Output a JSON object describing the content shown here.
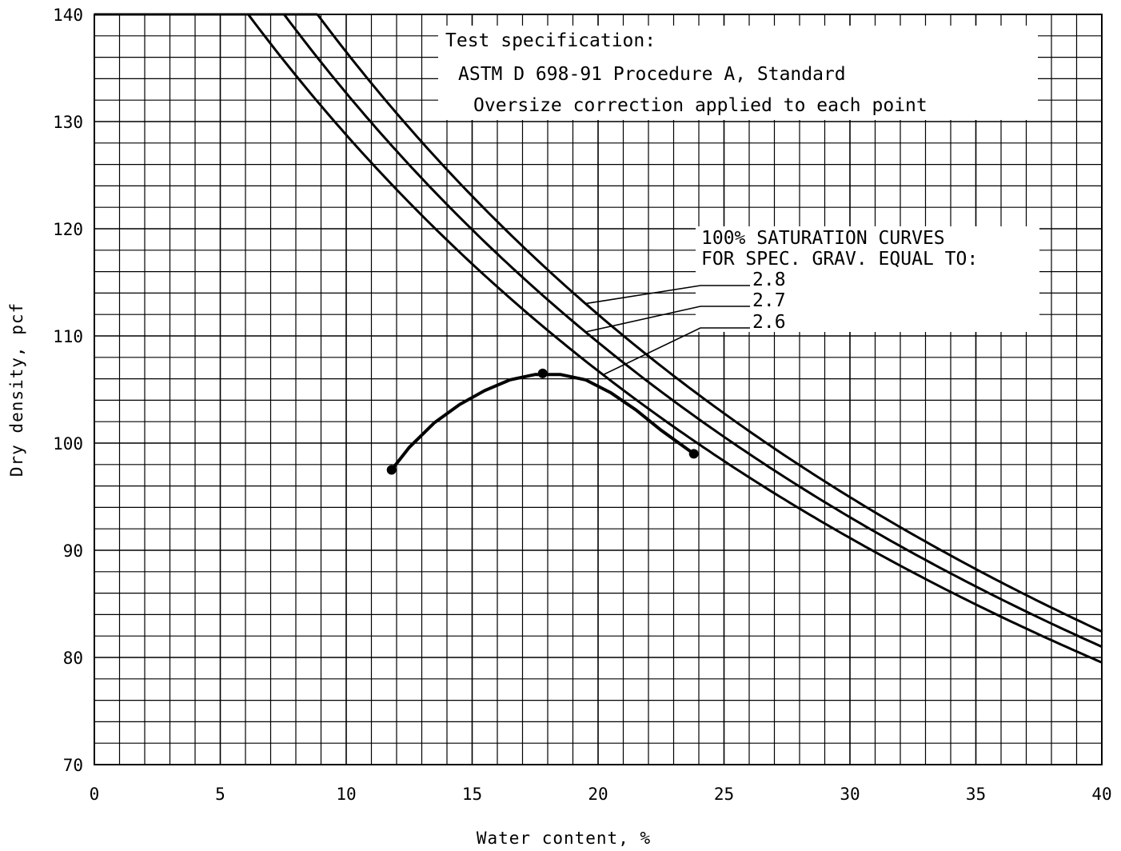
{
  "chart_data": {
    "type": "line",
    "title": "",
    "xlabel": "Water content, %",
    "ylabel": "Dry density, pcf",
    "xlim": [
      0,
      40
    ],
    "ylim": [
      70,
      140
    ],
    "x_ticks": [
      "0",
      "5",
      "10",
      "15",
      "20",
      "25",
      "30",
      "35",
      "40"
    ],
    "y_ticks": [
      "70",
      "80",
      "90",
      "100",
      "110",
      "120",
      "130",
      "140"
    ],
    "grid": true,
    "annotations": {
      "spec_lines": [
        "Test specification:",
        "ASTM D 698-91 Procedure A, Standard",
        "Oversize correction applied to each point"
      ],
      "saturation_heading": [
        "100% SATURATION CURVES",
        "FOR SPEC. GRAV. EQUAL TO:"
      ]
    },
    "saturation_curves": [
      {
        "name": "2.8",
        "specific_gravity": 2.8
      },
      {
        "name": "2.7",
        "specific_gravity": 2.7
      },
      {
        "name": "2.6",
        "specific_gravity": 2.6
      }
    ],
    "series": [
      {
        "x": [
          11.8,
          17.8,
          23.8
        ],
        "y": [
          97.5,
          106.5,
          99.0
        ]
      }
    ],
    "fit_curve": {
      "x": [
        11.8,
        12.5,
        13.5,
        14.5,
        15.5,
        16.5,
        17.5,
        18.5,
        19.5,
        20.5,
        21.5,
        22.5,
        23.8
      ],
      "y": [
        97.5,
        99.6,
        101.9,
        103.6,
        104.9,
        105.9,
        106.4,
        106.4,
        105.9,
        104.7,
        103.1,
        101.2,
        99.0
      ]
    }
  }
}
